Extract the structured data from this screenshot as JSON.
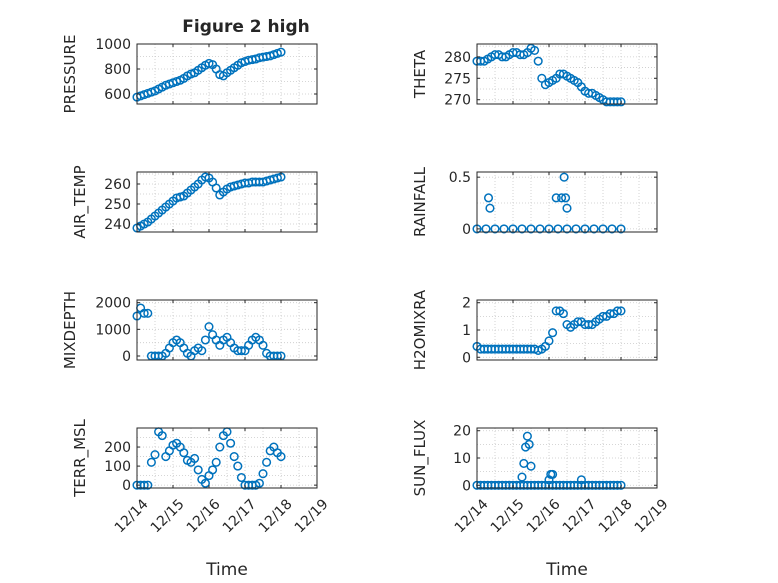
{
  "figure": {
    "title": "Figure 2 high",
    "marker_color": "#0072BD",
    "x_ticks": [
      "12/14",
      "12/15",
      "12/16",
      "12/17",
      "12/18",
      "12/19"
    ]
  },
  "chart_data": [
    {
      "type": "scatter",
      "name": "PRESSURE",
      "title": "Figure 2 high",
      "ylabel": "PRESSURE",
      "xlabel": "",
      "xlim": [
        "12/14",
        "12/19"
      ],
      "ylim": [
        520,
        1000
      ],
      "yticks": [
        600,
        800,
        1000
      ],
      "ytick_labels": [
        "600",
        "800",
        "1000"
      ],
      "grid": true,
      "marker": "circle",
      "x_days": [
        0.0,
        0.1,
        0.2,
        0.3,
        0.4,
        0.5,
        0.6,
        0.7,
        0.8,
        0.9,
        1.0,
        1.1,
        1.2,
        1.3,
        1.4,
        1.5,
        1.6,
        1.7,
        1.8,
        1.9,
        2.0,
        2.1,
        2.2,
        2.3,
        2.4,
        2.5,
        2.6,
        2.7,
        2.8,
        2.9,
        3.0,
        3.1,
        3.2,
        3.3,
        3.4,
        3.5,
        3.6,
        3.7,
        3.8,
        3.9,
        4.0
      ],
      "values": [
        575,
        585,
        595,
        605,
        615,
        625,
        640,
        655,
        670,
        680,
        690,
        700,
        710,
        725,
        745,
        760,
        770,
        790,
        810,
        830,
        845,
        835,
        800,
        755,
        745,
        770,
        790,
        810,
        830,
        850,
        860,
        870,
        875,
        880,
        890,
        895,
        900,
        905,
        915,
        925,
        935
      ]
    },
    {
      "type": "scatter",
      "name": "THETA",
      "ylabel": "THETA",
      "xlabel": "",
      "xlim": [
        "12/14",
        "12/19"
      ],
      "ylim": [
        269,
        283
      ],
      "yticks": [
        270,
        275,
        280
      ],
      "ytick_labels": [
        "270",
        "275",
        "280"
      ],
      "grid": true,
      "marker": "circle",
      "x_days": [
        0.0,
        0.1,
        0.2,
        0.3,
        0.4,
        0.5,
        0.6,
        0.7,
        0.8,
        0.9,
        1.0,
        1.1,
        1.2,
        1.3,
        1.4,
        1.5,
        1.6,
        1.7,
        1.8,
        1.9,
        2.0,
        2.1,
        2.2,
        2.3,
        2.4,
        2.5,
        2.6,
        2.7,
        2.8,
        2.9,
        3.0,
        3.1,
        3.2,
        3.3,
        3.4,
        3.5,
        3.6,
        3.7,
        3.8,
        3.9,
        4.0
      ],
      "values": [
        279,
        279,
        279,
        279.5,
        280,
        280.5,
        280.5,
        280,
        280,
        280.5,
        281,
        281,
        280.5,
        280.5,
        281,
        282,
        281.5,
        279,
        275,
        273.5,
        274,
        274.5,
        275,
        276,
        276,
        275.5,
        275,
        274.5,
        274,
        273,
        272,
        271.5,
        271.5,
        271,
        270.5,
        270,
        269.5,
        269.5,
        269.5,
        269.5,
        269.5
      ]
    },
    {
      "type": "scatter",
      "name": "AIR_TEMP",
      "ylabel": "AIR_TEMP",
      "xlabel": "",
      "xlim": [
        "12/14",
        "12/19"
      ],
      "ylim": [
        236,
        266
      ],
      "yticks": [
        240,
        250,
        260
      ],
      "ytick_labels": [
        "240",
        "250",
        "260"
      ],
      "grid": true,
      "marker": "circle",
      "x_days": [
        0.0,
        0.1,
        0.2,
        0.3,
        0.4,
        0.5,
        0.6,
        0.7,
        0.8,
        0.9,
        1.0,
        1.1,
        1.2,
        1.3,
        1.4,
        1.5,
        1.6,
        1.7,
        1.8,
        1.9,
        2.0,
        2.1,
        2.2,
        2.3,
        2.4,
        2.5,
        2.6,
        2.7,
        2.8,
        2.9,
        3.0,
        3.1,
        3.2,
        3.3,
        3.4,
        3.5,
        3.6,
        3.7,
        3.8,
        3.9,
        4.0
      ],
      "values": [
        238,
        239,
        240,
        241,
        242.5,
        244,
        245.5,
        247,
        248.5,
        250,
        251.5,
        253,
        253.5,
        254,
        255.5,
        257,
        258.5,
        260,
        262,
        263.5,
        263,
        261,
        258,
        254.5,
        256,
        257.5,
        258.5,
        259,
        259.5,
        260,
        260.5,
        260.5,
        261,
        261,
        261,
        261,
        261.5,
        262,
        262.5,
        263,
        263.5
      ]
    },
    {
      "type": "scatter",
      "name": "RAINFALL",
      "ylabel": "RAINFALL",
      "xlabel": "",
      "xlim": [
        "12/14",
        "12/19"
      ],
      "ylim": [
        -0.03,
        0.55
      ],
      "yticks": [
        0,
        0.5
      ],
      "ytick_labels": [
        "0",
        "0.5"
      ],
      "grid": true,
      "marker": "circle",
      "x_days": [
        0.0,
        0.25,
        0.5,
        0.75,
        1.0,
        1.25,
        1.5,
        1.75,
        2.0,
        2.25,
        2.5,
        2.75,
        3.0,
        3.25,
        3.5,
        3.75,
        4.0,
        0.32,
        0.36,
        2.2,
        2.35,
        2.42,
        2.46,
        2.5
      ],
      "values": [
        0,
        0,
        0,
        0,
        0,
        0,
        0,
        0,
        0,
        0,
        0,
        0,
        0,
        0,
        0,
        0,
        0,
        0.3,
        0.2,
        0.3,
        0.3,
        0.5,
        0.3,
        0.2
      ]
    },
    {
      "type": "scatter",
      "name": "MIXDEPTH",
      "ylabel": "MIXDEPTH",
      "xlabel": "",
      "xlim": [
        "12/14",
        "12/19"
      ],
      "ylim": [
        -150,
        2100
      ],
      "yticks": [
        0,
        1000,
        2000
      ],
      "ytick_labels": [
        "0",
        "1000",
        "2000"
      ],
      "grid": true,
      "marker": "circle",
      "x_days": [
        0.0,
        0.1,
        0.2,
        0.3,
        0.4,
        0.5,
        0.6,
        0.7,
        0.8,
        0.9,
        1.0,
        1.1,
        1.2,
        1.3,
        1.4,
        1.5,
        1.6,
        1.7,
        1.8,
        1.9,
        2.0,
        2.1,
        2.2,
        2.3,
        2.4,
        2.5,
        2.6,
        2.7,
        2.8,
        2.9,
        3.0,
        3.1,
        3.2,
        3.3,
        3.4,
        3.5,
        3.6,
        3.7,
        3.8,
        3.9,
        4.0
      ],
      "values": [
        1500,
        1800,
        1600,
        1600,
        0,
        0,
        0,
        0,
        100,
        300,
        500,
        600,
        500,
        300,
        100,
        0,
        200,
        300,
        200,
        600,
        1100,
        800,
        600,
        400,
        600,
        700,
        500,
        300,
        200,
        200,
        200,
        400,
        600,
        700,
        600,
        400,
        100,
        0,
        0,
        0,
        0
      ]
    },
    {
      "type": "scatter",
      "name": "H2OMIXRA",
      "ylabel": "H2OMIXRA",
      "xlabel": "",
      "xlim": [
        "12/14",
        "12/19"
      ],
      "ylim": [
        -0.1,
        2.1
      ],
      "yticks": [
        0,
        1,
        2
      ],
      "ytick_labels": [
        "0",
        "1",
        "2"
      ],
      "grid": true,
      "marker": "circle",
      "x_days": [
        0.0,
        0.1,
        0.2,
        0.3,
        0.4,
        0.5,
        0.6,
        0.7,
        0.8,
        0.9,
        1.0,
        1.1,
        1.2,
        1.3,
        1.4,
        1.5,
        1.6,
        1.7,
        1.8,
        1.9,
        2.0,
        2.1,
        2.2,
        2.3,
        2.4,
        2.5,
        2.6,
        2.7,
        2.8,
        2.9,
        3.0,
        3.1,
        3.2,
        3.3,
        3.4,
        3.5,
        3.6,
        3.7,
        3.8,
        3.9,
        4.0
      ],
      "values": [
        0.4,
        0.3,
        0.3,
        0.3,
        0.3,
        0.3,
        0.3,
        0.3,
        0.3,
        0.3,
        0.3,
        0.3,
        0.3,
        0.3,
        0.3,
        0.3,
        0.3,
        0.25,
        0.3,
        0.4,
        0.6,
        0.9,
        1.7,
        1.7,
        1.6,
        1.2,
        1.1,
        1.2,
        1.3,
        1.3,
        1.2,
        1.2,
        1.2,
        1.3,
        1.4,
        1.5,
        1.5,
        1.6,
        1.6,
        1.7,
        1.7
      ]
    },
    {
      "type": "scatter",
      "name": "TERR_MSL",
      "ylabel": "TERR_MSL",
      "xlabel": "Time",
      "xlim": [
        "12/14",
        "12/19"
      ],
      "ylim": [
        -15,
        300
      ],
      "yticks": [
        0,
        100,
        200
      ],
      "ytick_labels": [
        "0",
        "100",
        "200"
      ],
      "grid": true,
      "marker": "circle",
      "x_days": [
        0.0,
        0.1,
        0.2,
        0.3,
        0.4,
        0.5,
        0.6,
        0.7,
        0.8,
        0.9,
        1.0,
        1.1,
        1.2,
        1.3,
        1.4,
        1.5,
        1.6,
        1.7,
        1.8,
        1.9,
        2.0,
        2.1,
        2.2,
        2.3,
        2.4,
        2.5,
        2.6,
        2.7,
        2.8,
        2.9,
        3.0,
        3.1,
        3.2,
        3.3,
        3.4,
        3.5,
        3.6,
        3.7,
        3.8,
        3.9,
        4.0
      ],
      "values": [
        0,
        0,
        0,
        0,
        120,
        160,
        280,
        260,
        150,
        180,
        210,
        220,
        200,
        170,
        130,
        120,
        140,
        80,
        30,
        10,
        50,
        80,
        120,
        200,
        260,
        280,
        220,
        150,
        100,
        40,
        0,
        0,
        0,
        0,
        10,
        60,
        120,
        180,
        200,
        170,
        150
      ]
    },
    {
      "type": "scatter",
      "name": "SUN_FLUX",
      "ylabel": "SUN_FLUX",
      "xlabel": "Time",
      "xlim": [
        "12/14",
        "12/19"
      ],
      "ylim": [
        -1,
        21
      ],
      "yticks": [
        0,
        10,
        20
      ],
      "ytick_labels": [
        "0",
        "10",
        "20"
      ],
      "grid": true,
      "marker": "circle",
      "x_days": [
        0.0,
        0.1,
        0.2,
        0.3,
        0.4,
        0.5,
        0.6,
        0.7,
        0.8,
        0.9,
        1.0,
        1.1,
        1.2,
        1.3,
        1.4,
        1.5,
        1.6,
        1.7,
        1.8,
        1.9,
        2.0,
        2.1,
        2.2,
        2.3,
        2.4,
        2.5,
        2.6,
        2.7,
        2.8,
        2.9,
        3.0,
        3.1,
        3.2,
        3.3,
        3.4,
        3.5,
        3.6,
        3.7,
        3.8,
        3.9,
        4.0,
        1.25,
        1.3,
        1.35,
        1.4,
        1.45,
        1.5,
        2.0,
        2.05,
        2.1,
        2.9
      ],
      "values": [
        0,
        0,
        0,
        0,
        0,
        0,
        0,
        0,
        0,
        0,
        0,
        0,
        0,
        0,
        0,
        0,
        0,
        0,
        0,
        0,
        0,
        0,
        0,
        0,
        0,
        0,
        0,
        0,
        0,
        0,
        0,
        0,
        0,
        0,
        0,
        0,
        0,
        0,
        0,
        0,
        0,
        3,
        8,
        14,
        18,
        15,
        7,
        2,
        4,
        4,
        2
      ]
    }
  ]
}
